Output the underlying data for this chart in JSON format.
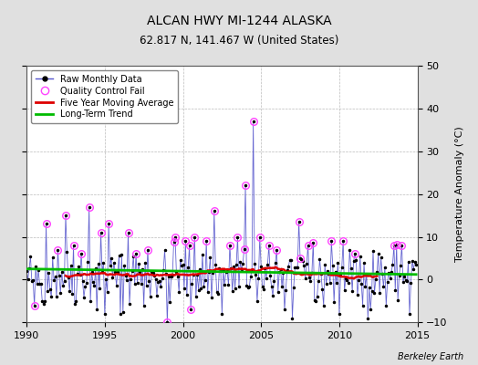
{
  "title": "ALCAN HWY MI-1244 ALASKA",
  "subtitle": "62.817 N, 141.467 W (United States)",
  "ylabel": "Temperature Anomaly (°C)",
  "watermark": "Berkeley Earth",
  "xlim": [
    1990,
    2015
  ],
  "ylim": [
    -10,
    50
  ],
  "yticks": [
    -10,
    0,
    10,
    20,
    30,
    40,
    50
  ],
  "xticks": [
    1990,
    1995,
    2000,
    2005,
    2010,
    2015
  ],
  "bg_color": "#e0e0e0",
  "plot_bg_color": "#ffffff",
  "raw_line_color": "#5555cc",
  "raw_marker_color": "#000000",
  "qc_fail_color": "#ff44ff",
  "moving_avg_color": "#dd0000",
  "trend_color": "#00bb00",
  "seed": 42
}
